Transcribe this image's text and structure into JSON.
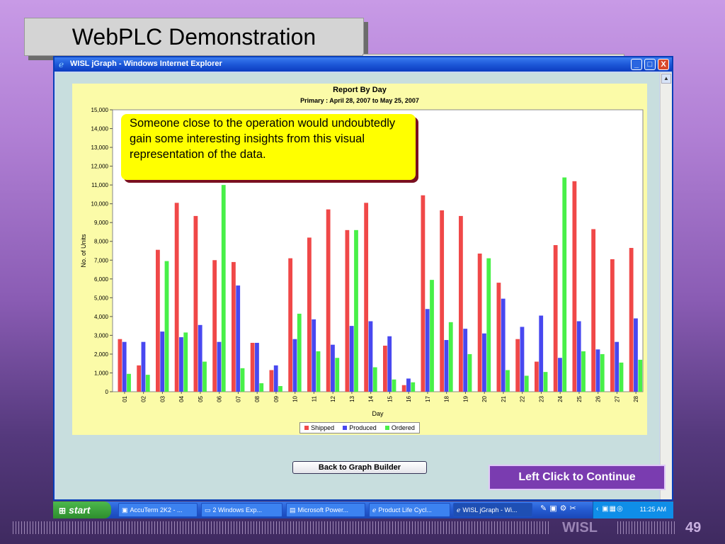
{
  "slide": {
    "title": "WebPLC Demonstration",
    "footer_brand": "WISL",
    "slide_number": "49",
    "continue_label": "Left Click to Continue",
    "callout_text": "Someone close to the operation would undoubtedly gain some interesting insights from this visual representation of the data."
  },
  "browser": {
    "window_title": "WISL jGraph - Windows Internet Explorer",
    "logo_icon": "ie-logo-icon",
    "minimize": "_",
    "maximize": "□",
    "close": "X"
  },
  "page": {
    "back_button_label": "Back to Graph Builder"
  },
  "colors": {
    "shipped": "#f04848",
    "produced": "#4848f0",
    "ordered": "#48f048"
  },
  "chart_data": {
    "type": "bar",
    "title": "Report By Day",
    "subtitle": "Primary : April 28, 2007 to May 25, 2007",
    "xlabel": "Day",
    "ylabel": "No. of Units",
    "ylim": [
      0,
      15000
    ],
    "yticks": [
      "0",
      "1,000",
      "2,000",
      "3,000",
      "4,000",
      "5,000",
      "6,000",
      "7,000",
      "8,000",
      "9,000",
      "10,000",
      "11,000",
      "12,000",
      "13,000",
      "14,000",
      "15,000"
    ],
    "legend_position": "bottom",
    "categories": [
      "01",
      "02",
      "03",
      "04",
      "05",
      "06",
      "07",
      "08",
      "09",
      "10",
      "11",
      "12",
      "13",
      "14",
      "15",
      "16",
      "17",
      "18",
      "19",
      "20",
      "21",
      "22",
      "23",
      "24",
      "25",
      "26",
      "27",
      "28"
    ],
    "series": [
      {
        "name": "Shipped",
        "values": [
          2800,
          1400,
          7550,
          10050,
          9350,
          7000,
          6900,
          2600,
          1150,
          7100,
          8200,
          9700,
          8600,
          10050,
          2450,
          350,
          10450,
          9650,
          9350,
          7350,
          5800,
          2800,
          1600,
          7800,
          11200,
          8650,
          7050,
          7650
        ]
      },
      {
        "name": "Produced",
        "values": [
          2650,
          2650,
          3200,
          2900,
          3550,
          2650,
          5650,
          2600,
          1400,
          2800,
          3850,
          2500,
          3500,
          3750,
          2950,
          700,
          4400,
          2750,
          3350,
          3100,
          4950,
          3450,
          4050,
          1800,
          3750,
          2250,
          2650,
          3900
        ]
      },
      {
        "name": "Ordered",
        "values": [
          950,
          900,
          6950,
          3150,
          1600,
          11000,
          1250,
          450,
          300,
          4150,
          2150,
          1800,
          8600,
          1300,
          650,
          500,
          5950,
          3700,
          2000,
          7100,
          1150,
          850,
          1050,
          11400,
          2150,
          2000,
          1550,
          1700
        ]
      }
    ]
  },
  "taskbar": {
    "start_label": "start",
    "tasks": [
      {
        "label": "AccuTerm 2K2 - ...",
        "icon": "terminal-icon"
      },
      {
        "label": "2 Windows Exp...",
        "icon": "folder-icon"
      },
      {
        "label": "Microsoft Power...",
        "icon": "powerpoint-icon"
      },
      {
        "label": "Product Life Cycl...",
        "icon": "ie-icon"
      },
      {
        "label": "WISL jGraph - Wi...",
        "icon": "ie-icon"
      }
    ],
    "clock": "11:25 AM"
  }
}
